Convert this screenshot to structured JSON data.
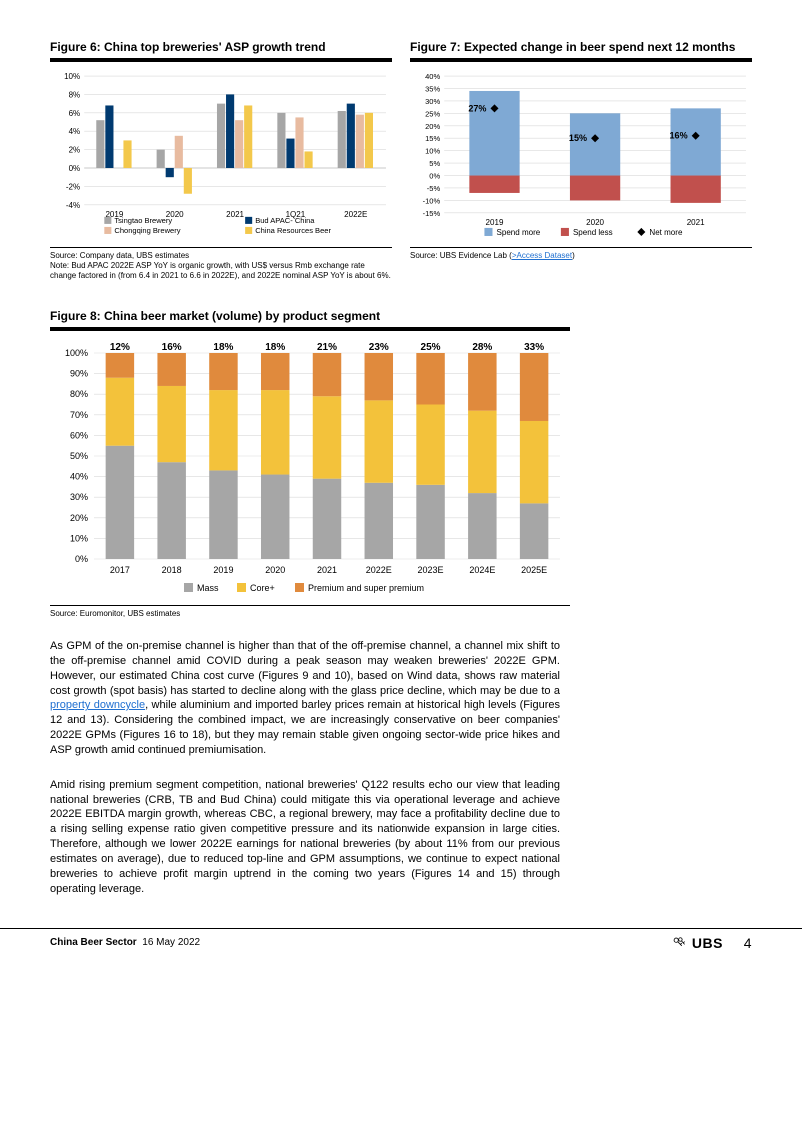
{
  "fig6": {
    "title": "Figure 6: China top breweries' ASP growth trend",
    "type": "grouped-bar",
    "categories": [
      "2019",
      "2020",
      "2021",
      "1Q21",
      "2022E"
    ],
    "ylim": [
      -4,
      10
    ],
    "ytick_step": 2,
    "ylabels": [
      "-4%",
      "-2%",
      "0%",
      "2%",
      "4%",
      "6%",
      "8%",
      "10%"
    ],
    "series": [
      {
        "name": "Tsingtao Brewery",
        "color": "#a6a6a6",
        "values": [
          5.2,
          2.0,
          7.0,
          6.0,
          6.2
        ]
      },
      {
        "name": "Bud APAC- China",
        "color": "#003a70",
        "values": [
          6.8,
          -1.0,
          8.0,
          3.2,
          7.0
        ]
      },
      {
        "name": "Chongqing Brewery",
        "color": "#e8bba0",
        "values": [
          null,
          3.5,
          5.2,
          5.5,
          5.8
        ]
      },
      {
        "name": "China Resources Beer",
        "color": "#f3c84b",
        "values": [
          3.0,
          -2.8,
          6.8,
          1.8,
          6.0
        ]
      }
    ],
    "bar_group_width": 0.6,
    "grid_color": "#d9d9d9",
    "background_color": "#ffffff",
    "source": "Source: Company data, UBS estimates",
    "note": "Note: Bud APAC 2022E ASP YoY is organic growth, with US$ versus Rmb exchange rate change factored in (from 6.4 in 2021 to 6.6 in 2022E), and 2022E nominal ASP YoY is about 6%."
  },
  "fig7": {
    "title": "Figure 7: Expected change in beer spend next 12 months",
    "type": "stacked-bar-with-markers",
    "categories": [
      "2019",
      "2020",
      "2021"
    ],
    "ylim": [
      -15,
      40
    ],
    "ytick_step": 5,
    "ylabels": [
      "-15%",
      "-10%",
      "-5%",
      "0%",
      "5%",
      "10%",
      "15%",
      "20%",
      "25%",
      "30%",
      "35%",
      "40%"
    ],
    "spend_more": {
      "name": "Spend more",
      "color": "#7fa9d4",
      "values": [
        34,
        25,
        27
      ]
    },
    "spend_less": {
      "name": "Spend less",
      "color": "#c1504d",
      "values": [
        -7,
        -10,
        -11
      ]
    },
    "net_more": {
      "name": "Net more",
      "marker_color": "#000000",
      "values": [
        27,
        15,
        16
      ],
      "labels": [
        "27%",
        "15%",
        "16%"
      ]
    },
    "grid_color": "#d9d9d9",
    "background_color": "#ffffff",
    "source_prefix": "Source: UBS Evidence Lab (",
    "source_link": ">Access Dataset",
    "source_suffix": ")"
  },
  "fig8": {
    "title": "Figure 8: China beer market (volume) by product segment",
    "type": "stacked-bar-100",
    "categories": [
      "2017",
      "2018",
      "2019",
      "2020",
      "2021",
      "2022E",
      "2023E",
      "2024E",
      "2025E"
    ],
    "ylim": [
      0,
      100
    ],
    "ytick_step": 10,
    "ylabels": [
      "0%",
      "10%",
      "20%",
      "30%",
      "40%",
      "50%",
      "60%",
      "70%",
      "80%",
      "90%",
      "100%"
    ],
    "series": [
      {
        "name": "Mass",
        "color": "#a6a6a6",
        "values": [
          55,
          47,
          43,
          41,
          39,
          37,
          36,
          32,
          27
        ]
      },
      {
        "name": "Core+",
        "color": "#f3c23b",
        "values": [
          33,
          37,
          39,
          41,
          40,
          40,
          39,
          40,
          40
        ]
      },
      {
        "name": "Premium and super premium",
        "color": "#e08a3d",
        "values": [
          12,
          16,
          18,
          18,
          21,
          23,
          25,
          28,
          33
        ]
      }
    ],
    "top_labels": [
      "12%",
      "16%",
      "18%",
      "18%",
      "21%",
      "23%",
      "25%",
      "28%",
      "33%"
    ],
    "grid_color": "#d9d9d9",
    "background_color": "#ffffff",
    "bar_width": 0.55,
    "source": "Source: Euromonitor, UBS estimates"
  },
  "body": {
    "para1_a": "As GPM of the on-premise channel is higher than that of the off-premise channel, a channel mix shift to the off-premise channel amid COVID during a peak season may weaken breweries' 2022E GPM. However, our estimated China cost curve (Figures 9 and 10), based on Wind data, shows raw material cost growth (spot basis) has started to decline along with the glass price decline, which may be due to a ",
    "para1_link": "property downcycle",
    "para1_b": ", while aluminium and imported barley prices remain at historical high levels (Figures 12 and 13). Considering the combined impact, we are increasingly conservative on beer companies' 2022E GPMs (Figures 16 to 18), but they may remain stable given ongoing sector-wide price hikes and ASP growth amid continued premiumisation.",
    "para2": "Amid rising premium segment competition, national breweries' Q122 results echo our view that leading national breweries (CRB, TB and Bud China) could mitigate this via operational leverage and achieve 2022E EBITDA margin growth, whereas CBC, a regional brewery, may face a profitability decline due to a rising selling expense ratio given competitive pressure and its nationwide expansion in large cities. Therefore, although we lower 2022E earnings for national breweries (by about 11% from our previous estimates on average), due to reduced top-line and GPM assumptions, we continue to expect national breweries to achieve profit margin uptrend in the coming two years (Figures 14 and 15) through operating leverage."
  },
  "footer": {
    "left_a": "China Beer Sector",
    "left_b": "16 May 2022",
    "brand": "UBS",
    "page": "4"
  }
}
